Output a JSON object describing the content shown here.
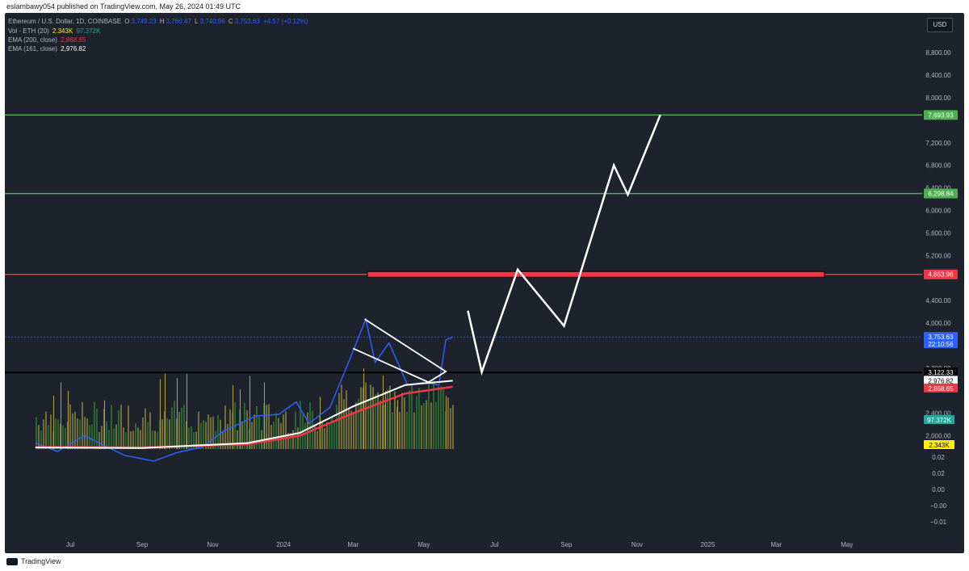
{
  "publisher": "eslambawy054 published on TradingView.com, May 26, 2024 01:49 UTC",
  "footer_brand": "TradingView",
  "currency_button": "USD",
  "legend": {
    "symbol": "Ethereum / U.S. Dollar, 1D, COINBASE",
    "ohlc": {
      "o_label": "O",
      "o": "3,749.23",
      "h_label": "H",
      "h": "3,760.47",
      "l_label": "L",
      "l": "3,740.96",
      "c_label": "C",
      "c": "3,753.63",
      "change": "+4.57 (+0.12%)"
    },
    "vol_label": "Vol · ETH (20)",
    "vol_value": "2.343K",
    "vol_ma": "97.372K",
    "ema200_label": "EMA (200, close)",
    "ema200_value": "2,868.65",
    "ema161_label": "EMA (161, close)",
    "ema161_value": "2,976.82"
  },
  "colors": {
    "background": "#1e222d",
    "green_level": "#4caf50",
    "red_level": "#f23645",
    "candle_blue": "#2962ff",
    "ema200": "#f23645",
    "ema161": "#ffffff",
    "volume_gold": "#b5a642",
    "volume_ma": "#26a69a",
    "projection": "#ffffff"
  },
  "chart_data": {
    "type": "line",
    "title": "Ethereum / U.S. Dollar, 1D, COINBASE",
    "y_ticks": [
      "8,800.00",
      "8,400.00",
      "8,000.00",
      "7,200.00",
      "6,800.00",
      "6,400.00",
      "6,000.00",
      "5,600.00",
      "5,200.00",
      "4,400.00",
      "4,000.00",
      "3,200.00",
      "2,400.00",
      "2,000.00"
    ],
    "y_ticks_values": [
      8800,
      8400,
      8000,
      7200,
      6800,
      6400,
      6000,
      5600,
      5200,
      4400,
      4000,
      3200,
      2400,
      2000
    ],
    "indicator_ticks": [
      "0.02",
      "0.02",
      "0.00",
      "−0.00",
      "−0.01"
    ],
    "x_ticks": [
      "Jul",
      "Sep",
      "Nov",
      "2024",
      "Mar",
      "May",
      "Jul",
      "Sep",
      "Nov",
      "2025",
      "Mar",
      "May"
    ],
    "x_ticks_dates": [
      "2023-07-01",
      "2023-09-01",
      "2023-11-01",
      "2024-01-01",
      "2024-03-01",
      "2024-05-01",
      "2024-07-01",
      "2024-09-01",
      "2024-11-01",
      "2025-01-01",
      "2025-03-01",
      "2025-05-01"
    ],
    "levels": [
      {
        "value": 7693.93,
        "label": "7,693.93",
        "color": "#4caf50"
      },
      {
        "value": 6298.84,
        "label": "6,298.84",
        "color": "#4caf50"
      },
      {
        "value": 4863.96,
        "label": "4,863.96",
        "color": "#f23645"
      },
      {
        "value": 3122.33,
        "label": "3,122.33",
        "color": "#000000"
      }
    ],
    "price_labels": [
      {
        "value": 3753.63,
        "label": "3,753.63",
        "sub": "22:10:56",
        "color": "#2962ff"
      },
      {
        "value": 2976.82,
        "label": "2,976.82",
        "color": "#ffffff"
      },
      {
        "value": 2868.65,
        "label": "2,868.65",
        "color": "#f23645"
      }
    ],
    "volume_labels": [
      {
        "label": "97.372K",
        "color": "#26a69a"
      },
      {
        "label": "2.343K",
        "color": "#fff200"
      }
    ],
    "series": [
      {
        "values": [
          [
            "2023-06-01",
            1870
          ],
          [
            "2023-06-20",
            1720
          ],
          [
            "2023-07-13",
            2000
          ],
          [
            "2023-08-17",
            1650
          ],
          [
            "2023-09-11",
            1550
          ],
          [
            "2023-10-01",
            1700
          ],
          [
            "2023-10-23",
            1800
          ],
          [
            "2023-11-10",
            2080
          ],
          [
            "2023-12-08",
            2350
          ],
          [
            "2023-12-28",
            2380
          ],
          [
            "2024-01-12",
            2600
          ],
          [
            "2024-01-23",
            2220
          ],
          [
            "2024-02-10",
            2500
          ],
          [
            "2024-02-28",
            3400
          ],
          [
            "2024-03-12",
            4070
          ],
          [
            "2024-03-20",
            3300
          ],
          [
            "2024-04-01",
            3650
          ],
          [
            "2024-04-17",
            2900
          ],
          [
            "2024-05-01",
            2950
          ],
          [
            "2024-05-14",
            2900
          ],
          [
            "2024-05-20",
            3700
          ],
          [
            "2024-05-26",
            3753
          ]
        ]
      },
      {
        "name": "EMA (200, close)",
        "values": [
          [
            "2023-06-01",
            1800
          ],
          [
            "2023-09-01",
            1790
          ],
          [
            "2023-12-01",
            1850
          ],
          [
            "2024-01-15",
            2000
          ],
          [
            "2024-03-01",
            2400
          ],
          [
            "2024-04-15",
            2750
          ],
          [
            "2024-05-26",
            2868.65
          ]
        ]
      },
      {
        "name": "EMA (161, close)",
        "values": [
          [
            "2023-06-01",
            1790
          ],
          [
            "2023-09-01",
            1780
          ],
          [
            "2023-12-01",
            1870
          ],
          [
            "2024-01-15",
            2050
          ],
          [
            "2024-03-01",
            2520
          ],
          [
            "2024-04-15",
            2900
          ],
          [
            "2024-05-26",
            2976.82
          ]
        ]
      },
      {
        "values": [
          [
            "2024-06-08",
            4220
          ],
          [
            "2024-06-20",
            3130
          ],
          [
            "2024-07-21",
            4950
          ],
          [
            "2024-08-30",
            3950
          ],
          [
            "2024-10-12",
            6800
          ],
          [
            "2024-10-24",
            6280
          ],
          [
            "2024-11-21",
            7693.93
          ]
        ]
      }
    ],
    "ylim": [
      1800,
      9200
    ],
    "xlim": [
      "2023-06-01",
      "2025-06-01"
    ],
    "grid": false,
    "legend": "top-left"
  }
}
